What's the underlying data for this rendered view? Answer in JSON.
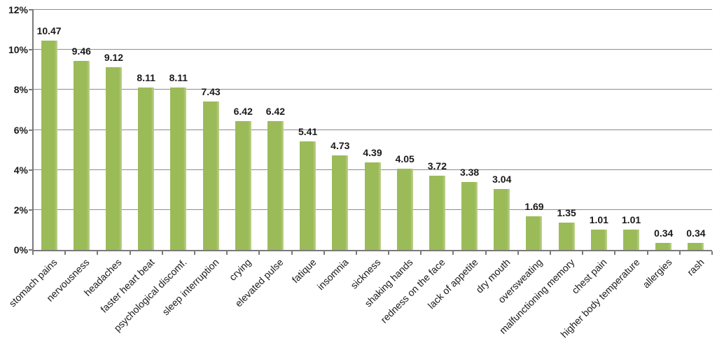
{
  "chart_data": {
    "type": "bar",
    "title": "",
    "xlabel": "",
    "ylabel": "",
    "categories": [
      "stomach pains",
      "nervousness",
      "headaches",
      "faster heart beat",
      "psychological discomf.",
      "sleep interruption",
      "crying",
      "elevated pulse",
      "fatique",
      "insomnia",
      "sickness",
      "shaking hands",
      "redness on the face",
      "lack of appetite",
      "dry mouth",
      "oversweating",
      "malfunctioning memory",
      "chest pain",
      "higher body temperature",
      "allergies",
      "rash"
    ],
    "values": [
      10.47,
      9.46,
      9.12,
      8.11,
      8.11,
      7.43,
      6.42,
      6.42,
      5.41,
      4.73,
      4.39,
      4.05,
      3.72,
      3.38,
      3.04,
      1.69,
      1.35,
      1.01,
      1.01,
      0.34,
      0.34
    ],
    "value_labels": [
      "10.47",
      "9.46",
      "9.12",
      "8.11",
      "8.11",
      "7.43",
      "6.42",
      "6.42",
      "5.41",
      "4.73",
      "4.39",
      "4.05",
      "3.72",
      "3.38",
      "3.04",
      "1.69",
      "1.35",
      "1.01",
      "1.01",
      "0.34",
      "0.34"
    ],
    "ylim": [
      0,
      12
    ],
    "y_ticks": [
      0,
      2,
      4,
      6,
      8,
      10,
      12
    ],
    "y_tick_labels": [
      "0%",
      "2%",
      "4%",
      "6%",
      "8%",
      "10%",
      "12%"
    ],
    "grid": true,
    "legend": "none",
    "bar_color": "#9BBB59",
    "bar_edge_highlight": "#C0D38F",
    "gridline_color": "#8C8C8C",
    "axis_color": "#7A7A7A",
    "label_color": "#1A1A1A"
  }
}
